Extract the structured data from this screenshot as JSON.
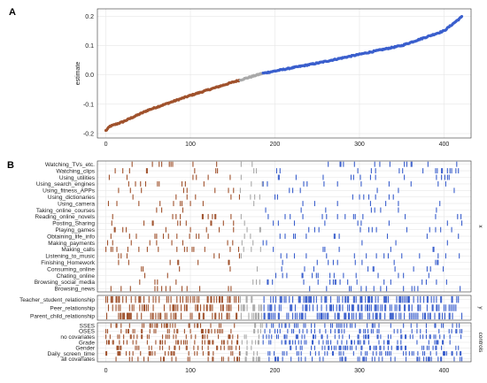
{
  "figure": {
    "panel_a_letter": "A",
    "panel_b_letter": "B"
  },
  "colors": {
    "negative": "#a0522d",
    "null": "#a9a9a9",
    "positive": "#3a5fcd",
    "grid": "#e6e6e6",
    "axis": "#333333"
  },
  "chart_data": [
    {
      "type": "scatter",
      "panel": "A",
      "ylabel": "estimate",
      "xlabel": "",
      "n_points": 422,
      "xlim": [
        -10,
        432
      ],
      "ylim": [
        -0.215,
        0.225
      ],
      "x_ticks": [
        "0",
        "100",
        "200",
        "300",
        "400"
      ],
      "y_ticks": [
        "-0.2",
        "-0.1",
        "0.0",
        "0.1",
        "0.2"
      ],
      "grid": true,
      "groups": [
        {
          "color": "negative",
          "x_range": [
            0,
            158
          ],
          "y_range": [
            -0.19,
            -0.015
          ]
        },
        {
          "color": "null",
          "x_range": [
            158,
            185
          ],
          "y_range": [
            -0.015,
            0.005
          ]
        },
        {
          "color": "positive",
          "x_range": [
            185,
            422
          ],
          "y_range": [
            0.005,
            0.2
          ]
        }
      ],
      "curve": [
        [
          0,
          -0.19
        ],
        [
          5,
          -0.175
        ],
        [
          20,
          -0.16
        ],
        [
          50,
          -0.12
        ],
        [
          100,
          -0.07
        ],
        [
          150,
          -0.025
        ],
        [
          185,
          0.005
        ],
        [
          250,
          0.04
        ],
        [
          300,
          0.07
        ],
        [
          350,
          0.1
        ],
        [
          400,
          0.15
        ],
        [
          422,
          0.2
        ]
      ]
    },
    {
      "type": "heatmap",
      "panel": "B",
      "xlim": [
        -10,
        432
      ],
      "x_ticks": [
        "0",
        "100",
        "200",
        "300",
        "400"
      ],
      "facets": [
        {
          "label": "x",
          "rows": [
            "Watching_TVs_etc.",
            "Watching_clips",
            "Using_utilities",
            "Using_search_engines",
            "Using_fitness_APPs",
            "Using_dictionaries",
            "Using_camera",
            "Taking_online_courses",
            "Reading_online_novels",
            "Posting_Sharing",
            "Playing_games",
            "Obtaining_life_info",
            "Making_payments",
            "Making_calls",
            "Listening_to_music",
            "Finishing_Homework",
            "Consuming_online",
            "Chating_online",
            "Browsing_social_media",
            "Browsing_news"
          ],
          "tick_density": 0.045
        },
        {
          "label": "y",
          "rows": [
            "Teacher_student_relationship",
            "Peer_relationship",
            "Parent_child_relationship"
          ],
          "tick_density": 0.32
        },
        {
          "label": "controls",
          "rows": [
            "SSES",
            "OSES",
            "no covariates",
            "Grade",
            "Gender",
            "Daily_screen_time",
            "all covariates"
          ],
          "tick_density": 0.2
        }
      ]
    }
  ]
}
